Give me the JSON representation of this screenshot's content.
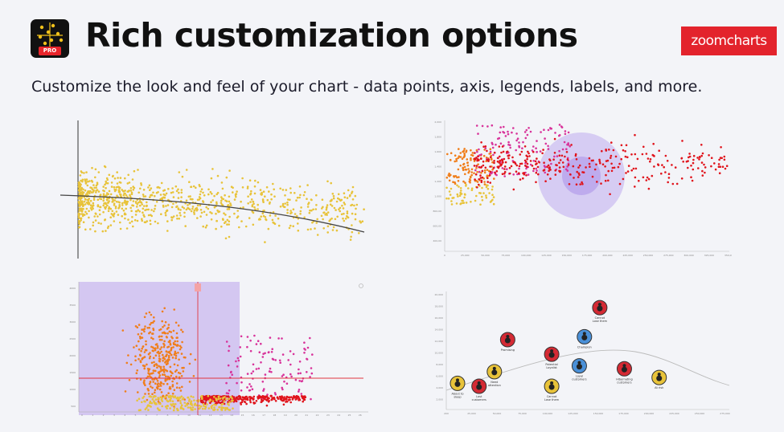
{
  "header": {
    "title": "Rich customization options",
    "subtitle": "Customize the look and feel of your chart - data points, axis, legends, labels, and more.",
    "logo_text": "zoomcharts",
    "icon_badge": "PRO",
    "logo_color": "#e3232c"
  },
  "colors": {
    "yellow": "#e8c33a",
    "orange": "#f07e1a",
    "magenta": "#d8339a",
    "red": "#e0141c",
    "purple": "#9b7fe0",
    "trend": "#444444"
  },
  "chart_data": [
    {
      "type": "scatter",
      "title": "",
      "description_series": [
        {
          "name": "",
          "color": "yellow",
          "trend": "decreasing"
        }
      ]
    },
    {
      "type": "scatter",
      "title": "",
      "y_tick_labels": [
        "2,000",
        "1,800",
        "1,600",
        "1,400",
        "1,200",
        "1,000",
        "800,00",
        "600,00",
        "400,00"
      ],
      "x_tick_labels": [
        "0",
        "25,000",
        "50,000",
        "75,000",
        "100,000",
        "125,000",
        "150,000",
        "175,000",
        "200,000",
        "225,000",
        "250,000",
        "275,000",
        "300,000",
        "325,000",
        "350,000"
      ],
      "series": [
        {
          "name": "",
          "color": "orange"
        },
        {
          "name": "",
          "color": "yellow"
        },
        {
          "name": "",
          "color": "magenta"
        },
        {
          "name": "",
          "color": "red"
        }
      ]
    },
    {
      "type": "scatter",
      "title": "",
      "y_tick_labels": [
        "4000",
        "3500",
        "3000",
        "2500",
        "2000",
        "1500",
        "1000",
        "500"
      ],
      "series": [
        {
          "name": "",
          "color": "orange"
        },
        {
          "name": "",
          "color": "magenta"
        },
        {
          "name": "",
          "color": "red"
        },
        {
          "name": "",
          "color": "yellow"
        }
      ]
    },
    {
      "type": "scatter",
      "title": "",
      "y_tick_labels": [
        "20,000",
        "18,000",
        "16,000",
        "14,000",
        "12,000",
        "10,000",
        "8,000",
        "6,000",
        "4,000",
        "2,000"
      ],
      "x_tick_labels": [
        "200",
        "25,000",
        "50,000",
        "75,000",
        "100,000",
        "125,000",
        "150,000",
        "175,000",
        "200,000",
        "225,000",
        "250,000",
        "275,000"
      ],
      "points": [
        {
          "label": "Cannot\nLose them",
          "x": 150000,
          "y": 17500,
          "color": "red"
        },
        {
          "label": "Promising",
          "x": 60000,
          "y": 12000,
          "color": "red"
        },
        {
          "label": "Champion",
          "x": 135000,
          "y": 12500,
          "color": "blue"
        },
        {
          "label": "Potential\nLoyalist",
          "x": 103000,
          "y": 9500,
          "color": "red"
        },
        {
          "label": "Loyal\ncustomers",
          "x": 130000,
          "y": 7500,
          "color": "blue"
        },
        {
          "label": "Hibernating\ncustomers",
          "x": 174000,
          "y": 7000,
          "color": "red"
        },
        {
          "label": "Need\nattention",
          "x": 47000,
          "y": 6500,
          "color": "yellow"
        },
        {
          "label": "At risk",
          "x": 208000,
          "y": 5500,
          "color": "yellow"
        },
        {
          "label": "About to\nsleep",
          "x": 11000,
          "y": 4500,
          "color": "yellow"
        },
        {
          "label": "Lost\ncustomers",
          "x": 32000,
          "y": 4000,
          "color": "red"
        },
        {
          "label": "Cannot\nLose them",
          "x": 103000,
          "y": 4000,
          "color": "yellow"
        }
      ]
    }
  ]
}
